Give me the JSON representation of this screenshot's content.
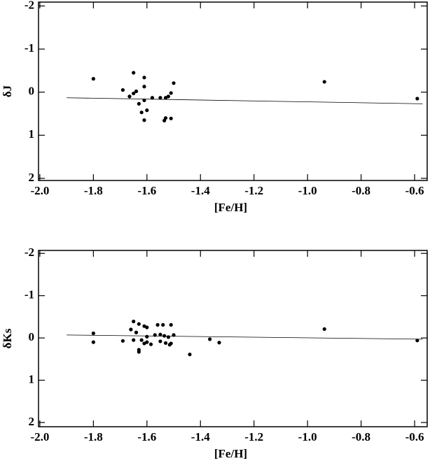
{
  "chart_data": [
    {
      "type": "scatter",
      "ylabel": "δJ",
      "xlabel": "[Fe/H]",
      "xlim": [
        -2.005,
        -0.553
      ],
      "ylim": [
        2.05,
        -2.09
      ],
      "xticks": [
        {
          "value": -2.0,
          "label": "-2.0"
        },
        -1.8,
        -1.6,
        -1.4,
        -1.2,
        {
          "value": -1.0,
          "label": "-1.0"
        },
        -0.8,
        -0.6
      ],
      "yticks": [
        -2,
        -1,
        0,
        1,
        2
      ],
      "series": [
        {
          "color": "#000000",
          "x": [
            -1.8,
            -1.69,
            -1.65,
            -1.665,
            -1.65,
            -1.64,
            -1.63,
            -1.62,
            -1.61,
            -1.61,
            -1.61,
            -1.61,
            -1.6,
            -1.58,
            -1.55,
            -1.53,
            -1.535,
            -1.53,
            -1.52,
            -1.51,
            -1.51,
            -1.5,
            -0.937,
            -0.59
          ],
          "values": [
            -0.31,
            -0.05,
            -0.45,
            0.1,
            0.03,
            -0.02,
            0.27,
            0.47,
            -0.34,
            -0.13,
            0.19,
            0.65,
            0.42,
            0.13,
            0.13,
            0.13,
            0.66,
            0.6,
            0.1,
            0.02,
            0.61,
            -0.21,
            -0.24,
            0.15
          ]
        },
        {
          "type": "line",
          "color": "#000000",
          "x": [
            -1.9,
            -0.57
          ],
          "values": [
            0.13,
            0.27
          ]
        }
      ]
    },
    {
      "type": "scatter",
      "ylabel": "δKs",
      "xlabel": "[Fe/H]",
      "xlim": [
        -2.005,
        -0.553
      ],
      "ylim": [
        2.1,
        -2.07
      ],
      "xticks": [
        {
          "value": -2.0,
          "label": "-2.0"
        },
        -1.8,
        -1.6,
        -1.4,
        -1.2,
        {
          "value": -1.0,
          "label": "-1.0"
        },
        -0.8,
        -0.6
      ],
      "yticks": [
        -2,
        -1,
        0,
        1,
        2
      ],
      "series": [
        {
          "color": "#000000",
          "x": [
            -1.8,
            -1.8,
            -1.69,
            -1.66,
            -1.65,
            -1.65,
            -1.64,
            -1.63,
            -1.63,
            -1.63,
            -1.62,
            -1.61,
            -1.61,
            -1.6,
            -1.6,
            -1.6,
            -1.585,
            -1.57,
            -1.56,
            -1.55,
            -1.55,
            -1.54,
            -1.535,
            -1.53,
            -1.52,
            -1.515,
            -1.51,
            -1.51,
            -1.5,
            -1.44,
            -1.365,
            -1.33,
            -0.937,
            -0.59
          ],
          "values": [
            -0.11,
            0.1,
            0.07,
            -0.2,
            -0.39,
            0.05,
            -0.13,
            -0.33,
            0.28,
            0.33,
            0.05,
            -0.28,
            0.13,
            -0.25,
            0.1,
            -0.03,
            0.15,
            -0.07,
            -0.31,
            -0.08,
            0.08,
            -0.31,
            -0.05,
            0.12,
            -0.02,
            0.16,
            -0.31,
            0.13,
            -0.07,
            0.39,
            0.03,
            0.11,
            -0.21,
            0.06
          ]
        },
        {
          "type": "line",
          "color": "#000000",
          "x": [
            -1.9,
            -0.57
          ],
          "values": [
            -0.07,
            0.03
          ]
        }
      ]
    }
  ]
}
